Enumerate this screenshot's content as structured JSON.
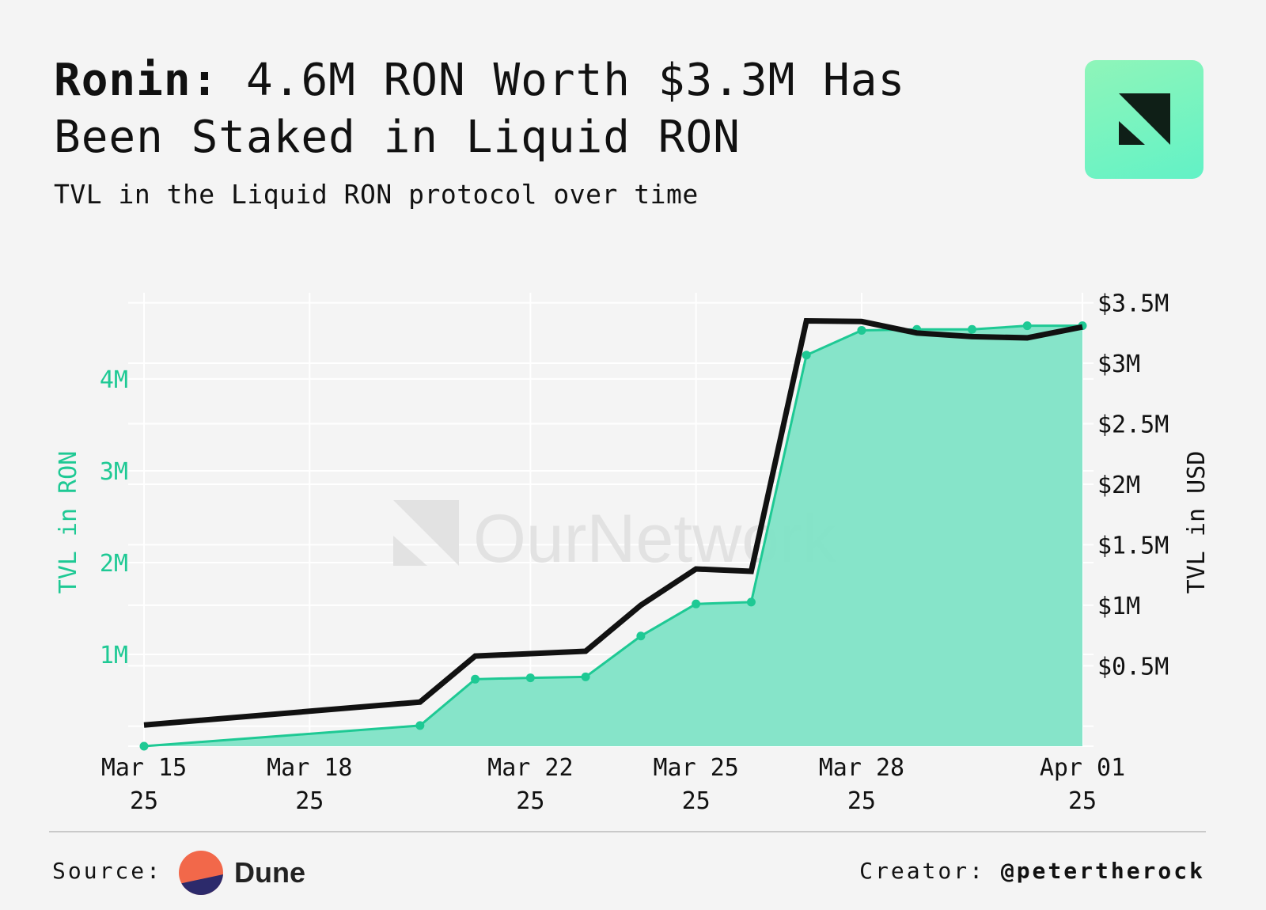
{
  "header": {
    "title_bold": "Ronin:",
    "title_rest": " 4.6M RON Worth $3.3M Has Been Staked in Liquid RON",
    "subtitle": "TVL in the Liquid RON protocol over time"
  },
  "watermark": "OurNetwork",
  "footer": {
    "source_label": "Source:",
    "source_name": "Dune",
    "creator_label": "Creator:",
    "creator_handle": "@petertherock"
  },
  "colors": {
    "ron_series": "#1ec994",
    "ron_fill": "#7fe3c6",
    "usd_series": "#111111",
    "background": "#f4f4f4",
    "grid": "#ffffff"
  },
  "chart_data": {
    "type": "area",
    "x_ticks": [
      {
        "date": "2025-03-15",
        "line1": "Mar 15",
        "line2": "25"
      },
      {
        "date": "2025-03-18",
        "line1": "Mar 18",
        "line2": "25"
      },
      {
        "date": "2025-03-22",
        "line1": "Mar 22",
        "line2": "25"
      },
      {
        "date": "2025-03-25",
        "line1": "Mar 25",
        "line2": "25"
      },
      {
        "date": "2025-03-28",
        "line1": "Mar 28",
        "line2": "25"
      },
      {
        "date": "2025-04-01",
        "line1": "Apr 01",
        "line2": "25"
      }
    ],
    "y_left": {
      "label": "TVL in RON",
      "range": [
        0,
        4870000
      ],
      "ticks": [
        {
          "value": 1000000,
          "label": "1M"
        },
        {
          "value": 2000000,
          "label": "2M"
        },
        {
          "value": 3000000,
          "label": "3M"
        },
        {
          "value": 4000000,
          "label": "4M"
        }
      ]
    },
    "y_right": {
      "label": "TVL in USD",
      "range": [
        -165000,
        3530000
      ],
      "ticks": [
        {
          "value": 500000,
          "label": "$0.5M"
        },
        {
          "value": 1000000,
          "label": "$1M"
        },
        {
          "value": 1500000,
          "label": "$1.5M"
        },
        {
          "value": 2000000,
          "label": "$2M"
        },
        {
          "value": 2500000,
          "label": "$2.5M"
        },
        {
          "value": 3000000,
          "label": "$3M"
        },
        {
          "value": 3500000,
          "label": "$3.5M"
        }
      ]
    },
    "grid": true,
    "series": [
      {
        "name": "TVL in RON",
        "axis": "left",
        "style": "area",
        "points": [
          {
            "date": "2025-03-15",
            "value": 0
          },
          {
            "date": "2025-03-20",
            "value": 225000
          },
          {
            "date": "2025-03-21",
            "value": 730000
          },
          {
            "date": "2025-03-22",
            "value": 745000
          },
          {
            "date": "2025-03-23",
            "value": 755000
          },
          {
            "date": "2025-03-24",
            "value": 1200000
          },
          {
            "date": "2025-03-25",
            "value": 1550000
          },
          {
            "date": "2025-03-26",
            "value": 1570000
          },
          {
            "date": "2025-03-27",
            "value": 4260000
          },
          {
            "date": "2025-03-28",
            "value": 4530000
          },
          {
            "date": "2025-03-29",
            "value": 4540000
          },
          {
            "date": "2025-03-30",
            "value": 4540000
          },
          {
            "date": "2025-03-31",
            "value": 4580000
          },
          {
            "date": "2025-04-01",
            "value": 4580000
          }
        ]
      },
      {
        "name": "TVL in USD",
        "axis": "right",
        "style": "line",
        "points": [
          {
            "date": "2025-03-15",
            "value": 10000
          },
          {
            "date": "2025-03-20",
            "value": 200000
          },
          {
            "date": "2025-03-21",
            "value": 580000
          },
          {
            "date": "2025-03-23",
            "value": 620000
          },
          {
            "date": "2025-03-24",
            "value": 1000000
          },
          {
            "date": "2025-03-25",
            "value": 1300000
          },
          {
            "date": "2025-03-26",
            "value": 1280000
          },
          {
            "date": "2025-03-27",
            "value": 3350000
          },
          {
            "date": "2025-03-28",
            "value": 3345000
          },
          {
            "date": "2025-03-29",
            "value": 3250000
          },
          {
            "date": "2025-03-30",
            "value": 3220000
          },
          {
            "date": "2025-03-31",
            "value": 3210000
          },
          {
            "date": "2025-04-01",
            "value": 3300000
          }
        ]
      }
    ]
  }
}
